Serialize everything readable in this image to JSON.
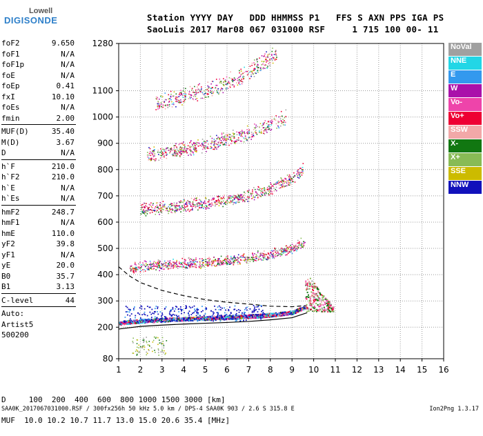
{
  "logo": {
    "line1": "Lowell",
    "line2": "DIGISONDE"
  },
  "header": {
    "row1": "Station YYYY DAY   DDD HHMMSS P1   FFS S AXN PPS IGA PS",
    "row2": "SaoLuis 2017 Mar08 067 031000 RSF     1 715 100 00- 11"
  },
  "params": {
    "group1": [
      {
        "k": "foF2",
        "v": "9.650"
      },
      {
        "k": "foF1",
        "v": "N/A"
      },
      {
        "k": "foF1p",
        "v": "N/A"
      },
      {
        "k": "foE",
        "v": "N/A"
      },
      {
        "k": "foEp",
        "v": "0.41"
      },
      {
        "k": "fxI",
        "v": "10.10"
      },
      {
        "k": "foEs",
        "v": "N/A"
      },
      {
        "k": "fmin",
        "v": "2.00"
      }
    ],
    "group2": [
      {
        "k": "MUF(D)",
        "v": "35.40"
      },
      {
        "k": "M(D)",
        "v": "3.67"
      },
      {
        "k": "D",
        "v": "N/A"
      }
    ],
    "group3": [
      {
        "k": "h`F",
        "v": "210.0"
      },
      {
        "k": "h`F2",
        "v": "210.0"
      },
      {
        "k": "h`E",
        "v": "N/A"
      },
      {
        "k": "h`Es",
        "v": "N/A"
      }
    ],
    "group4": [
      {
        "k": "hmF2",
        "v": "248.7"
      },
      {
        "k": "hmF1",
        "v": "N/A"
      },
      {
        "k": "hmE",
        "v": "110.0"
      },
      {
        "k": "yF2",
        "v": "39.8"
      },
      {
        "k": "yF1",
        "v": "N/A"
      },
      {
        "k": "yE",
        "v": "20.0"
      },
      {
        "k": "B0",
        "v": "35.7"
      },
      {
        "k": "B1",
        "v": "3.13"
      }
    ],
    "group5": [
      {
        "k": "C-level",
        "v": "44"
      }
    ],
    "auto": [
      "Auto:",
      "Artist5",
      "500200"
    ]
  },
  "legend": [
    {
      "label": "NoVal",
      "color": "#a0a0a0"
    },
    {
      "label": "NNE",
      "color": "#22d6e6"
    },
    {
      "label": "E",
      "color": "#3399ee"
    },
    {
      "label": "W",
      "color": "#aa11aa"
    },
    {
      "label": "Vo-",
      "color": "#ee44aa"
    },
    {
      "label": "Vo+",
      "color": "#ee0033"
    },
    {
      "label": "SSW",
      "color": "#f2a8a8"
    },
    {
      "label": "X-",
      "color": "#117711"
    },
    {
      "label": "X+",
      "color": "#88bb55"
    },
    {
      "label": "SSE",
      "color": "#ccbb00"
    },
    {
      "label": "NNW",
      "color": "#1111bb"
    }
  ],
  "chart_data": {
    "type": "scatter",
    "x_ticks": [
      "1",
      "2",
      "3",
      "4",
      "5",
      "6",
      "7",
      "8",
      "9",
      "10",
      "11",
      "12",
      "13",
      "14",
      "15",
      "16"
    ],
    "y_ticks": [
      "80",
      "200",
      "300",
      "400",
      "500",
      "600",
      "700",
      "800",
      "900",
      "1000",
      "1100",
      "1280"
    ],
    "xlim": [
      1,
      16
    ],
    "ylim": [
      80,
      1280
    ],
    "traces": [
      {
        "name": "echo-1",
        "x": [
          1.0,
          2,
          3,
          4,
          5,
          6,
          7,
          8,
          9,
          9.6
        ],
        "y": [
          215,
          222,
          226,
          230,
          233,
          236,
          240,
          245,
          255,
          275
        ]
      },
      {
        "name": "echo-2",
        "x": [
          1.5,
          2,
          3,
          4,
          5,
          6,
          7,
          8,
          9,
          9.6
        ],
        "y": [
          420,
          425,
          430,
          435,
          440,
          448,
          458,
          472,
          495,
          520
        ]
      },
      {
        "name": "echo-3",
        "x": [
          2,
          3,
          4,
          5,
          6,
          7,
          8,
          9,
          9.5
        ],
        "y": [
          640,
          648,
          655,
          665,
          678,
          695,
          720,
          760,
          790
        ]
      },
      {
        "name": "echo-4",
        "x": [
          2.3,
          3,
          4,
          5,
          6,
          7,
          8,
          8.7
        ],
        "y": [
          845,
          855,
          868,
          885,
          905,
          930,
          965,
          990
        ]
      },
      {
        "name": "echo-5",
        "x": [
          2.7,
          3.5,
          4.5,
          5.5,
          6.5,
          7.5,
          8.3
        ],
        "y": [
          1045,
          1058,
          1080,
          1105,
          1140,
          1190,
          1230
        ]
      }
    ],
    "o_profile": {
      "x": [
        1.0,
        2,
        3,
        4,
        5,
        6,
        7,
        8,
        9,
        9.7
      ],
      "y": [
        193,
        203,
        208,
        212,
        215,
        218,
        222,
        228,
        236,
        255
      ]
    },
    "dashed_profile": {
      "x": [
        1.0,
        1.5,
        2,
        3,
        4,
        5,
        6,
        7,
        8,
        9,
        9.6
      ],
      "y": [
        430,
        395,
        370,
        340,
        320,
        305,
        295,
        288,
        280,
        278,
        282
      ]
    }
  },
  "bottom": {
    "row1": "D     100  200  400  600  800 1000 1500 3000 [km]",
    "row2": "MUF  10.0 10.2 10.7 11.7 13.0 15.0 20.6 35.4 [MHz]"
  },
  "footer": "SAA0K_2017067031000.RSF / 300fx256h 50 kHz 5.0 km / DPS-4 SAA0K 903 / 2.6 S 315.8 E",
  "version": "Ion2Png 1.3.17"
}
